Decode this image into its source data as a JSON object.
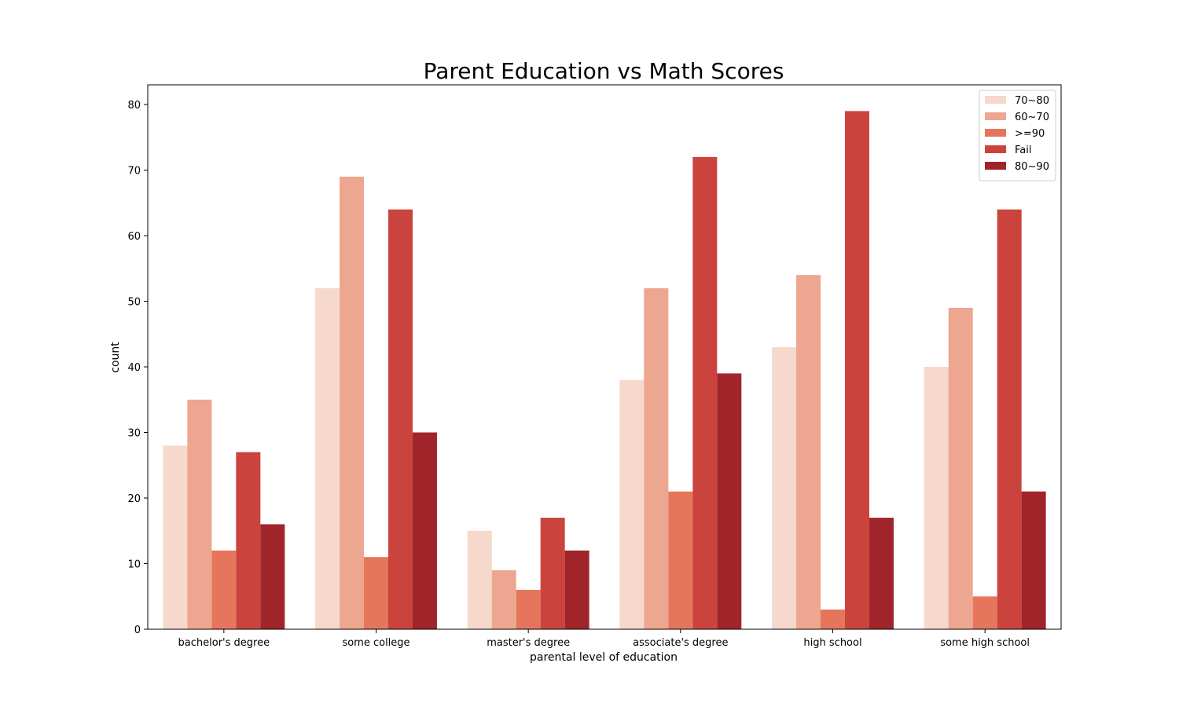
{
  "chart_data": {
    "type": "bar",
    "title": "Parent Education vs Math Scores",
    "xlabel": "parental level of education",
    "ylabel": "count",
    "ylim": [
      0,
      83
    ],
    "yticks": [
      0,
      10,
      20,
      30,
      40,
      50,
      60,
      70,
      80
    ],
    "categories": [
      "bachelor's degree",
      "some college",
      "master's degree",
      "associate's degree",
      "high school",
      "some high school"
    ],
    "series": [
      {
        "name": "70~80",
        "color": "#f7d8cc",
        "values": [
          28,
          52,
          15,
          38,
          43,
          40
        ]
      },
      {
        "name": "60~70",
        "color": "#eda68f",
        "values": [
          35,
          69,
          9,
          52,
          54,
          49
        ]
      },
      {
        "name": ">=90",
        "color": "#e5765c",
        "values": [
          12,
          11,
          6,
          21,
          3,
          5
        ]
      },
      {
        "name": "Fail",
        "color": "#cb433d",
        "values": [
          27,
          64,
          17,
          72,
          79,
          64
        ]
      },
      {
        "name": "80~90",
        "color": "#a0252b",
        "values": [
          16,
          30,
          12,
          39,
          17,
          21
        ]
      }
    ],
    "legend_position": "top-right"
  }
}
